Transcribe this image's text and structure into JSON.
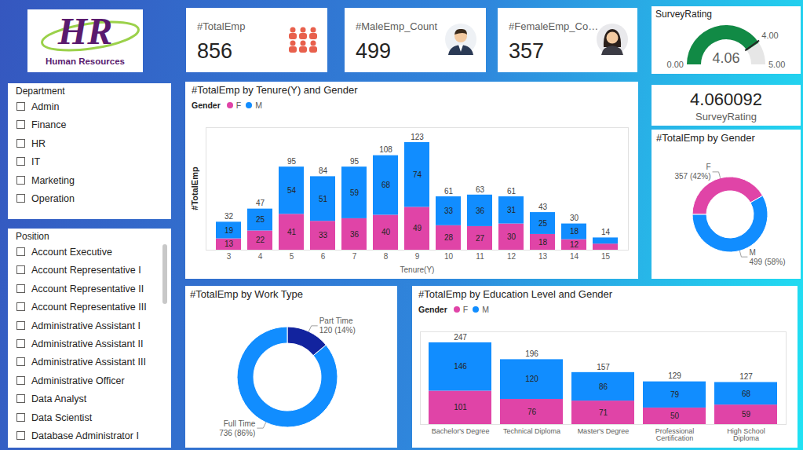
{
  "logo": {
    "mark": "HR",
    "text": "Human Resources"
  },
  "cards": [
    {
      "label": "#TotalEmp",
      "value": 856
    },
    {
      "label": "#MaleEmp_Count",
      "value": 499
    },
    {
      "label": "#FemaleEmp_Co…",
      "value": 357
    },
    {
      "label": "SurveyRating",
      "value": 4.060092
    }
  ],
  "slicers": [
    {
      "title": "Department",
      "items": [
        "Admin",
        "Finance",
        "HR",
        "IT",
        "Marketing",
        "Operation"
      ]
    },
    {
      "title": "Position",
      "items": [
        "Account Executive",
        "Account Representative I",
        "Account Representative II",
        "Account Representative III",
        "Administrative Assistant I",
        "Administrative Assistant II",
        "Administrative Assistant III",
        "Administrative Officer",
        "Data Analyst",
        "Data Scientist",
        "Database Administrator I"
      ]
    }
  ],
  "chart_data": [
    {
      "type": "gauge",
      "title": "SurveyRating",
      "value": 4.060092,
      "value_label": "4.06",
      "target": 4,
      "target_label": "4.00",
      "ylim": [
        0,
        5
      ],
      "yticks": [
        {
          "value": 0,
          "label": "0.00"
        },
        {
          "value": 5,
          "label": "5.00"
        }
      ],
      "color": "#118a45"
    },
    {
      "type": "bar",
      "title": "#TotalEmp by Tenure(Y) and Gender",
      "x_label": "Tenure(Y)",
      "y_label": "#TotalEmp",
      "legend_title": "Gender",
      "legend": "top-left",
      "stacked": true,
      "data_labels": true,
      "tick_labels": "x",
      "categories": [
        3,
        4,
        5,
        6,
        7,
        8,
        9,
        10,
        11,
        12,
        13,
        14,
        15
      ],
      "series": [
        {
          "name": "F",
          "color": "#e044a7",
          "values": [
            13,
            22,
            41,
            33,
            36,
            40,
            49,
            28,
            27,
            30,
            18,
            12,
            7
          ],
          "value_labels": [
            "13",
            "22",
            "41",
            "33",
            "36",
            "40",
            "49",
            "28",
            "27",
            "30",
            "18",
            "12",
            null
          ]
        },
        {
          "name": "M",
          "color": "#118dff",
          "values": [
            19,
            25,
            54,
            51,
            59,
            68,
            74,
            33,
            36,
            31,
            25,
            18,
            7
          ],
          "value_labels": [
            "19",
            "25",
            "54",
            "51",
            "59",
            "68",
            "74",
            "33",
            "36",
            "31",
            "25",
            "18",
            null
          ]
        }
      ],
      "totals": [
        32,
        47,
        95,
        84,
        95,
        108,
        123,
        61,
        63,
        61,
        43,
        30,
        14
      ],
      "ylim": [
        0,
        140
      ],
      "yticks": []
    },
    {
      "type": "pie",
      "title": "#TotalEmp by Gender",
      "categories": [
        "F",
        "M"
      ],
      "values": [
        357,
        499
      ],
      "value_labels": [
        "357 (42%)",
        "499 (58%)"
      ],
      "colors": [
        "#e044a7",
        "#118dff"
      ],
      "data_labels": true
    },
    {
      "type": "pie",
      "title": "#TotalEmp by Work Type",
      "categories": [
        "Part Time",
        "Full Time"
      ],
      "values": [
        120,
        736
      ],
      "value_labels": [
        "120 (14%)",
        "736 (86%)"
      ],
      "colors": [
        "#12239e",
        "#118dff"
      ],
      "data_labels": true
    },
    {
      "type": "bar",
      "title": "#TotalEmp by Education Level and Gender",
      "legend_title": "Gender",
      "legend": "top-left",
      "stacked": true,
      "data_labels": true,
      "tick_labels": "x",
      "categories": [
        "Bachelor's Degree",
        "Technical Diploma",
        "Master's Degree",
        "Professional Certification",
        "High School Diploma"
      ],
      "series": [
        {
          "name": "F",
          "color": "#e044a7",
          "values": [
            101,
            76,
            71,
            50,
            59
          ]
        },
        {
          "name": "M",
          "color": "#118dff",
          "values": [
            146,
            120,
            86,
            79,
            68
          ]
        }
      ],
      "totals": [
        247,
        196,
        157,
        129,
        127
      ],
      "ylim": [
        0,
        280
      ],
      "yticks": []
    }
  ]
}
